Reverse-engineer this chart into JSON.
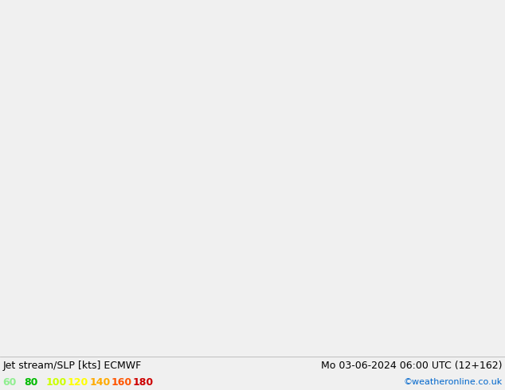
{
  "title_left": "Jet stream/SLP [kts] ECMWF",
  "title_right": "Mo 03-06-2024 06:00 UTC (12+162)",
  "credit": "©weatheronline.co.uk",
  "legend_values": [
    60,
    80,
    100,
    120,
    140,
    160,
    180
  ],
  "legend_colors": [
    "#90ee90",
    "#00cc00",
    "#c8ff00",
    "#ffff00",
    "#ffaa00",
    "#ff4400",
    "#cc0000"
  ],
  "ocean_color": "#d8d8d8",
  "land_color": "#c8e8c0",
  "border_color": "#888888",
  "coastline_color": "#888888",
  "bottom_bar_color": "#f0f0f0",
  "title_fontsize": 9,
  "credit_fontsize": 8,
  "legend_fontsize": 9,
  "map_extent": [
    70,
    180,
    -15,
    60
  ],
  "blue_contour_color": "#0000cc",
  "red_contour_color": "#cc0000",
  "black_contour_color": "#000000",
  "jet_colors": [
    "#b8f0b0",
    "#78e878",
    "#00cc00",
    "#ccff00",
    "#ffff00",
    "#ffaa00",
    "#ff6600",
    "#cc2200"
  ],
  "jet_levels": [
    60,
    70,
    80,
    100,
    120,
    140,
    160,
    180
  ]
}
